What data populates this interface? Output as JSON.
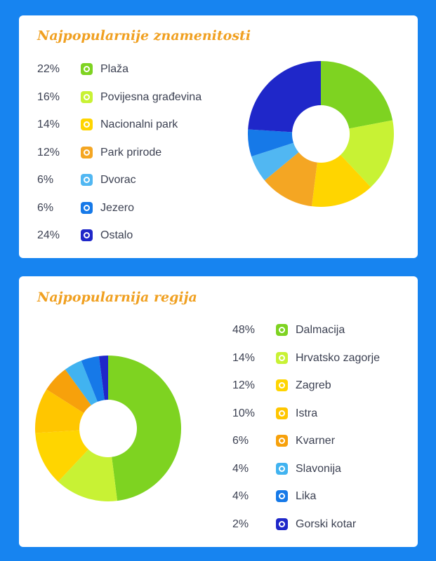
{
  "chart_data": [
    {
      "type": "pie",
      "title": "Najpopularnije znamenitosti",
      "categories": [
        "Plaža",
        "Povijesna građevina",
        "Nacionalni park",
        "Park prirode",
        "Dvorac",
        "Jezero",
        "Ostalo"
      ],
      "values": [
        22,
        16,
        14,
        12,
        6,
        6,
        24
      ],
      "value_labels": [
        "22%",
        "16%",
        "14%",
        "12%",
        "6%",
        "6%",
        "24%"
      ],
      "colors": [
        "#7ed321",
        "#c8f234",
        "#ffd500",
        "#f4a623",
        "#51b7f2",
        "#1679e8",
        "#1f27c9"
      ],
      "donut": true,
      "legend": "left"
    },
    {
      "type": "pie",
      "title": "Najpopularnija regija",
      "categories": [
        "Dalmacija",
        "Hrvatsko zagorje",
        "Zagreb",
        "Istra",
        "Kvarner",
        "Slavonija",
        "Lika",
        "Gorski kotar"
      ],
      "values": [
        48,
        14,
        12,
        10,
        6,
        4,
        4,
        2
      ],
      "value_labels": [
        "48%",
        "14%",
        "12%",
        "10%",
        "6%",
        "4%",
        "4%",
        "2%"
      ],
      "colors": [
        "#7ed321",
        "#c8f234",
        "#ffd500",
        "#ffc600",
        "#f7a10b",
        "#41b3f0",
        "#1679e8",
        "#1f27c9"
      ],
      "donut": true,
      "legend": "right"
    }
  ]
}
